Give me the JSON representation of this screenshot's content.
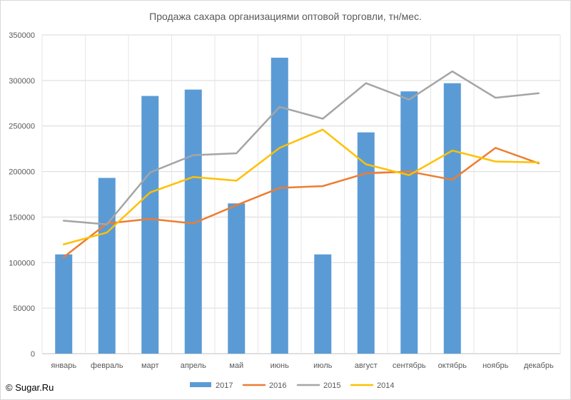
{
  "chart_data": {
    "type": "bar+line",
    "title": "Продажа сахара организациями оптовой торговли, тн/мес.",
    "categories": [
      "январь",
      "февраль",
      "март",
      "апрель",
      "май",
      "июнь",
      "июль",
      "август",
      "сентябрь",
      "октябрь",
      "ноябрь",
      "декабрь"
    ],
    "ylim": [
      0,
      350000
    ],
    "yticks": [
      0,
      50000,
      100000,
      150000,
      200000,
      250000,
      300000,
      350000
    ],
    "ytick_labels": [
      "0",
      "50000",
      "100000",
      "150000",
      "200000",
      "250000",
      "300000",
      "350000"
    ],
    "grid": true,
    "legend_position": "bottom",
    "series": [
      {
        "name": "2017",
        "kind": "bar",
        "color": "#5b9bd5",
        "values": [
          109000,
          193000,
          283000,
          290000,
          165000,
          325000,
          109000,
          243000,
          288000,
          297000,
          null,
          null
        ]
      },
      {
        "name": "2016",
        "kind": "line",
        "color": "#ed7d31",
        "values": [
          106000,
          143000,
          148000,
          143000,
          163000,
          182000,
          184000,
          198000,
          200000,
          191000,
          226000,
          209000
        ]
      },
      {
        "name": "2015",
        "kind": "line",
        "color": "#a5a5a5",
        "values": [
          146000,
          142000,
          199000,
          218000,
          220000,
          271000,
          258000,
          297000,
          279000,
          310000,
          281000,
          286000
        ]
      },
      {
        "name": "2014",
        "kind": "line",
        "color": "#ffc000",
        "values": [
          120000,
          133000,
          177000,
          194000,
          190000,
          226000,
          246000,
          208000,
          196000,
          223000,
          211000,
          210000
        ]
      }
    ]
  },
  "copyright": "© Sugar.Ru"
}
